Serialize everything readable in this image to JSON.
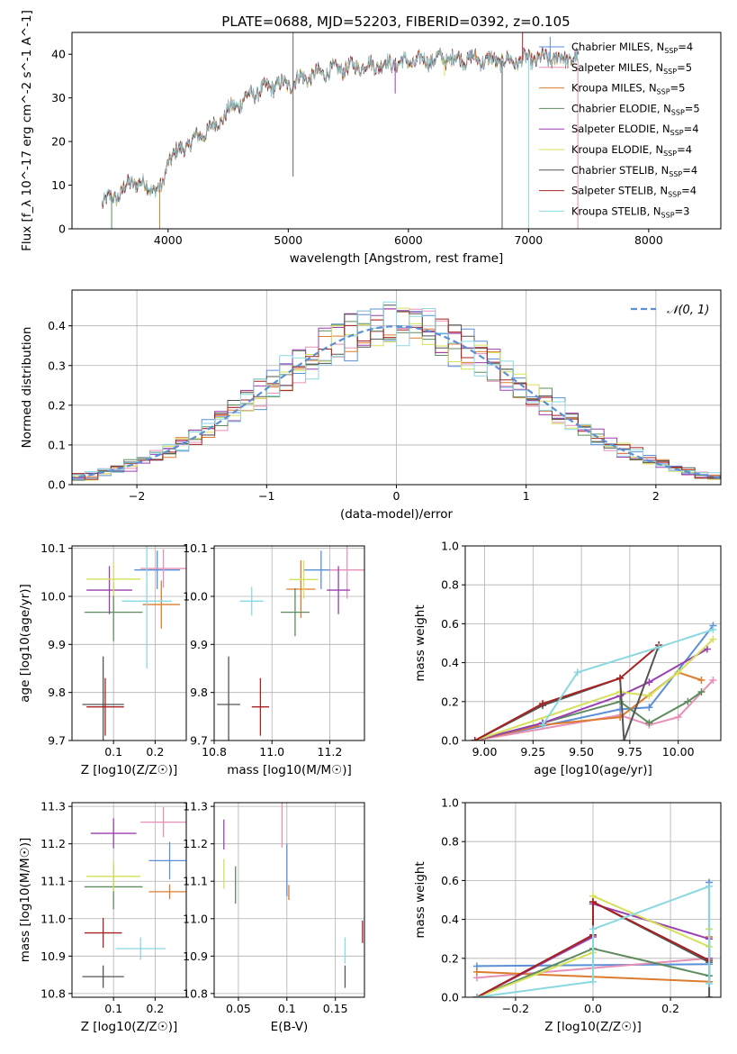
{
  "figure_title": "PLATE=0688, MJD=52203, FIBERID=0392, z=0.105",
  "colors": {
    "Chabrier MILES": "#5b8fd6",
    "Salpeter MILES": "#e88fb6",
    "Kroupa MILES": "#dd7c2f",
    "Chabrier ELODIE": "#5e8c5e",
    "Salpeter ELODIE": "#9b3fb0",
    "Kroupa ELODIE": "#d6e05a",
    "Chabrier STELIB": "#555555",
    "Salpeter STELIB": "#a82222",
    "Kroupa STELIB": "#8ad8e0",
    "normal_curve": "#5b8fd6"
  },
  "chart_data": [
    {
      "panel": "spectrum",
      "type": "line",
      "xlabel": "wavelength [Angstrom, rest frame]",
      "ylabel": "Flux [f_λ 10^-17 erg cm^-2 s^-1 A^-1]",
      "xlim": [
        3200,
        8600
      ],
      "ylim": [
        0,
        45
      ],
      "xticks": [
        4000,
        5000,
        6000,
        7000,
        8000
      ],
      "yticks": [
        0,
        10,
        20,
        30,
        40
      ],
      "grid": false,
      "legend_position": "right",
      "legend": [
        {
          "label": "Chabrier MILES, N_SSP=4",
          "main": "Chabrier MILES, N",
          "sub": "SSP",
          "post": "=4"
        },
        {
          "label": "Salpeter MILES, N_SSP=5",
          "main": "Salpeter MILES, N",
          "sub": "SSP",
          "post": "=5"
        },
        {
          "label": "Kroupa MILES, N_SSP=5",
          "main": "Kroupa MILES, N",
          "sub": "SSP",
          "post": "=5"
        },
        {
          "label": "Chabrier ELODIE, N_SSP=5",
          "main": "Chabrier ELODIE, N",
          "sub": "SSP",
          "post": "=5"
        },
        {
          "label": "Salpeter ELODIE, N_SSP=4",
          "main": "Salpeter ELODIE, N",
          "sub": "SSP",
          "post": "=4"
        },
        {
          "label": "Kroupa ELODIE, N_SSP=4",
          "main": "Kroupa ELODIE, N",
          "sub": "SSP",
          "post": "=4"
        },
        {
          "label": "Chabrier STELIB, N_SSP=4",
          "main": "Chabrier STELIB, N",
          "sub": "SSP",
          "post": "=4"
        },
        {
          "label": "Salpeter STELIB, N_SSP=4",
          "main": "Salpeter STELIB, N",
          "sub": "SSP",
          "post": "=4"
        },
        {
          "label": "Kroupa STELIB, N_SSP=3",
          "main": "Kroupa STELIB, N",
          "sub": "SSP",
          "post": "=3"
        }
      ],
      "continuum": [
        [
          3450,
          6
        ],
        [
          3600,
          8
        ],
        [
          3700,
          11
        ],
        [
          3800,
          10
        ],
        [
          3900,
          9
        ],
        [
          3950,
          9
        ],
        [
          4000,
          16
        ],
        [
          4100,
          18
        ],
        [
          4200,
          20
        ],
        [
          4300,
          22
        ],
        [
          4400,
          24
        ],
        [
          4500,
          27
        ],
        [
          4600,
          29
        ],
        [
          4700,
          31
        ],
        [
          4800,
          32
        ],
        [
          4900,
          33
        ],
        [
          5000,
          33
        ],
        [
          5100,
          34.5
        ],
        [
          5200,
          35
        ],
        [
          5300,
          36
        ],
        [
          5500,
          37
        ],
        [
          5700,
          37.5
        ],
        [
          5900,
          38
        ],
        [
          6100,
          38.5
        ],
        [
          6300,
          39
        ],
        [
          6500,
          39
        ],
        [
          6700,
          38.5
        ],
        [
          6900,
          38.5
        ],
        [
          7100,
          39
        ],
        [
          7300,
          39
        ],
        [
          7420,
          39
        ]
      ],
      "spikes": [
        {
          "x": 5040,
          "y": 45
        },
        {
          "x": 5040,
          "y": 12
        },
        {
          "x": 3930,
          "y": 0
        },
        {
          "x": 3530,
          "y": 0
        },
        {
          "x": 5890,
          "y": 31
        },
        {
          "x": 6300,
          "y": 35
        },
        {
          "x": 6780,
          "y": 0
        },
        {
          "x": 6950,
          "y": 45
        },
        {
          "x": 7000,
          "y": 0
        },
        {
          "x": 7180,
          "y": 44
        },
        {
          "x": 7410,
          "y": 0
        },
        {
          "x": 6560,
          "y": 41
        }
      ]
    },
    {
      "panel": "residuals",
      "type": "histogram",
      "xlabel": "(data-model)/error",
      "ylabel": "Normed distribution",
      "xlim": [
        -2.5,
        2.5
      ],
      "ylim": [
        0,
        0.49
      ],
      "xticks": [
        -2,
        -1,
        0,
        1,
        2
      ],
      "yticks": [
        0.0,
        0.1,
        0.2,
        0.3,
        0.4
      ],
      "grid": true,
      "legend_position": "top-right",
      "reference_curve": {
        "label": "𝒩(0, 1)",
        "mean": 0,
        "sigma": 1
      }
    },
    {
      "panel": "age_vs_Z",
      "type": "scatter",
      "xlabel": "Z [log10(Z/Z☉)]",
      "ylabel": "age  [log10(age/yr)]",
      "xlim": [
        0.0,
        0.275
      ],
      "ylim": [
        9.7,
        10.105
      ],
      "xticks": [
        0.1,
        0.2
      ],
      "yticks": [
        9.7,
        9.8,
        9.9,
        10.0,
        10.1
      ],
      "grid": true,
      "points": [
        {
          "model": "Chabrier MILES",
          "x": 0.205,
          "y": 10.055,
          "xerr": 0.055,
          "yerr": 0.04
        },
        {
          "model": "Salpeter MILES",
          "x": 0.22,
          "y": 10.058,
          "xerr": 0.055,
          "yerr": 0.04
        },
        {
          "model": "Kroupa MILES",
          "x": 0.215,
          "y": 9.983,
          "xerr": 0.045,
          "yerr": 0.05
        },
        {
          "model": "Chabrier ELODIE",
          "x": 0.1,
          "y": 9.967,
          "xerr": 0.07,
          "yerr": 0.06
        },
        {
          "model": "Salpeter ELODIE",
          "x": 0.09,
          "y": 10.013,
          "xerr": 0.055,
          "yerr": 0.05
        },
        {
          "model": "Kroupa ELODIE",
          "x": 0.1,
          "y": 10.036,
          "xerr": 0.065,
          "yerr": 0.035
        },
        {
          "model": "Chabrier STELIB",
          "x": 0.075,
          "y": 9.775,
          "xerr": 0.05,
          "yerr": 0.1
        },
        {
          "model": "Salpeter STELIB",
          "x": 0.08,
          "y": 9.77,
          "xerr": 0.045,
          "yerr": 0.06
        },
        {
          "model": "Kroupa STELIB",
          "x": 0.18,
          "y": 9.99,
          "xerr": 0.06,
          "yerr": 0.14
        }
      ]
    },
    {
      "panel": "age_vs_mass",
      "type": "scatter",
      "xlabel": "mass [log10(M/M☉)]",
      "ylabel": "",
      "xlim": [
        10.8,
        11.32
      ],
      "ylim": [
        9.7,
        10.105
      ],
      "xticks": [
        10.8,
        11.0,
        11.2
      ],
      "yticks": [
        9.7,
        9.8,
        9.9,
        10.0,
        10.1
      ],
      "grid": true,
      "points": [
        {
          "model": "Chabrier MILES",
          "x": 11.17,
          "y": 10.055,
          "xerr": 0.06,
          "yerr": 0.04
        },
        {
          "model": "Salpeter MILES",
          "x": 11.26,
          "y": 10.055,
          "xerr": 0.06,
          "yerr": 0.06
        },
        {
          "model": "Kroupa MILES",
          "x": 11.1,
          "y": 10.015,
          "xerr": 0.05,
          "yerr": 0.06
        },
        {
          "model": "Chabrier ELODIE",
          "x": 11.08,
          "y": 9.967,
          "xerr": 0.05,
          "yerr": 0.05
        },
        {
          "model": "Salpeter ELODIE",
          "x": 11.23,
          "y": 10.013,
          "xerr": 0.04,
          "yerr": 0.05
        },
        {
          "model": "Kroupa ELODIE",
          "x": 11.11,
          "y": 10.035,
          "xerr": 0.05,
          "yerr": 0.04
        },
        {
          "model": "Chabrier STELIB",
          "x": 10.85,
          "y": 9.775,
          "xerr": 0.04,
          "yerr": 0.1
        },
        {
          "model": "Salpeter STELIB",
          "x": 10.96,
          "y": 9.77,
          "xerr": 0.03,
          "yerr": 0.06
        },
        {
          "model": "Kroupa STELIB",
          "x": 10.93,
          "y": 9.99,
          "xerr": 0.04,
          "yerr": 0.03
        }
      ]
    },
    {
      "panel": "weight_vs_age",
      "type": "line",
      "xlabel": "age  [log10(age/yr)]",
      "ylabel": "mass weight",
      "xlim": [
        8.9,
        10.22
      ],
      "ylim": [
        0,
        1
      ],
      "xticks": [
        9.0,
        9.25,
        9.5,
        9.75,
        10.0
      ],
      "yticks": [
        0.0,
        0.2,
        0.4,
        0.6,
        0.8,
        1.0
      ],
      "grid": true,
      "series": [
        {
          "model": "Chabrier MILES",
          "x": [
            8.95,
            9.7,
            9.85,
            10.18
          ],
          "y": [
            0.0,
            0.16,
            0.17,
            0.59
          ]
        },
        {
          "model": "Salpeter MILES",
          "x": [
            8.95,
            9.7,
            9.85,
            10.0,
            10.18
          ],
          "y": [
            0.0,
            0.13,
            0.08,
            0.12,
            0.31
          ]
        },
        {
          "model": "Kroupa MILES",
          "x": [
            8.95,
            9.3,
            9.7,
            10.0,
            10.12
          ],
          "y": [
            0.0,
            0.08,
            0.12,
            0.35,
            0.31
          ]
        },
        {
          "model": "Chabrier ELODIE",
          "x": [
            8.95,
            9.3,
            9.7,
            9.85,
            10.05,
            10.12
          ],
          "y": [
            0.0,
            0.09,
            0.2,
            0.09,
            0.2,
            0.25
          ]
        },
        {
          "model": "Salpeter ELODIE",
          "x": [
            8.95,
            9.3,
            9.7,
            9.85,
            10.15
          ],
          "y": [
            0.0,
            0.09,
            0.23,
            0.3,
            0.47
          ]
        },
        {
          "model": "Kroupa ELODIE",
          "x": [
            8.95,
            9.7,
            9.85,
            10.0,
            10.18
          ],
          "y": [
            0.0,
            0.25,
            0.23,
            0.35,
            0.52
          ]
        },
        {
          "model": "Chabrier STELIB",
          "x": [
            8.95,
            9.3,
            9.7,
            9.72,
            9.9
          ],
          "y": [
            0.0,
            0.18,
            0.32,
            0.0,
            0.49
          ]
        },
        {
          "model": "Salpeter STELIB",
          "x": [
            8.95,
            9.3,
            9.7,
            9.9
          ],
          "y": [
            0.0,
            0.19,
            0.32,
            0.49
          ]
        },
        {
          "model": "Kroupa STELIB",
          "x": [
            9.3,
            9.48,
            9.9,
            10.18
          ],
          "y": [
            0.08,
            0.35,
            0.48,
            0.57
          ]
        }
      ]
    },
    {
      "panel": "mass_vs_Z",
      "type": "scatter",
      "xlabel": "Z [log10(Z/Z☉)]",
      "ylabel": "mass [log10(M/M☉)]",
      "xlim": [
        0.0,
        0.275
      ],
      "ylim": [
        10.79,
        11.31
      ],
      "xticks": [
        0.1,
        0.2
      ],
      "yticks": [
        10.8,
        10.9,
        11.0,
        11.1,
        11.2,
        11.3
      ],
      "grid": true,
      "points": [
        {
          "model": "Chabrier MILES",
          "x": 0.235,
          "y": 11.155,
          "xerr": 0.05,
          "yerr": 0.05
        },
        {
          "model": "Salpeter MILES",
          "x": 0.22,
          "y": 11.258,
          "xerr": 0.055,
          "yerr": 0.04
        },
        {
          "model": "Kroupa MILES",
          "x": 0.235,
          "y": 11.072,
          "xerr": 0.05,
          "yerr": 0.02
        },
        {
          "model": "Chabrier ELODIE",
          "x": 0.1,
          "y": 11.085,
          "xerr": 0.07,
          "yerr": 0.06
        },
        {
          "model": "Salpeter ELODIE",
          "x": 0.1,
          "y": 11.228,
          "xerr": 0.055,
          "yerr": 0.04
        },
        {
          "model": "Kroupa ELODIE",
          "x": 0.1,
          "y": 11.113,
          "xerr": 0.065,
          "yerr": 0.04
        },
        {
          "model": "Chabrier STELIB",
          "x": 0.075,
          "y": 10.845,
          "xerr": 0.05,
          "yerr": 0.03
        },
        {
          "model": "Salpeter STELIB",
          "x": 0.075,
          "y": 10.962,
          "xerr": 0.045,
          "yerr": 0.04
        },
        {
          "model": "Kroupa STELIB",
          "x": 0.165,
          "y": 10.92,
          "xerr": 0.06,
          "yerr": 0.03
        }
      ]
    },
    {
      "panel": "mass_vs_EBV",
      "type": "scatter",
      "xlabel": "E(B-V)",
      "ylabel": "",
      "xlim": [
        0.025,
        0.18
      ],
      "ylim": [
        10.79,
        11.31
      ],
      "xticks": [
        0.05,
        0.1,
        0.15
      ],
      "yticks": [
        10.8,
        10.9,
        11.0,
        11.1,
        11.2,
        11.3
      ],
      "grid": true,
      "points": [
        {
          "model": "Chabrier MILES",
          "x": 0.1,
          "y": 11.13,
          "xerr": 0,
          "yerr": 0.07
        },
        {
          "model": "Salpeter MILES",
          "x": 0.095,
          "y": 11.255,
          "xerr": 0,
          "yerr": 0.065
        },
        {
          "model": "Kroupa MILES",
          "x": 0.102,
          "y": 11.07,
          "xerr": 0,
          "yerr": 0.02
        },
        {
          "model": "Chabrier ELODIE",
          "x": 0.047,
          "y": 11.09,
          "xerr": 0,
          "yerr": 0.05
        },
        {
          "model": "Salpeter ELODIE",
          "x": 0.035,
          "y": 11.225,
          "xerr": 0,
          "yerr": 0.04
        },
        {
          "model": "Kroupa ELODIE",
          "x": 0.035,
          "y": 11.12,
          "xerr": 0,
          "yerr": 0.04
        },
        {
          "model": "Chabrier STELIB",
          "x": 0.16,
          "y": 10.845,
          "xerr": 0,
          "yerr": 0.03
        },
        {
          "model": "Salpeter STELIB",
          "x": 0.178,
          "y": 10.965,
          "xerr": 0,
          "yerr": 0.03
        },
        {
          "model": "Kroupa STELIB",
          "x": 0.16,
          "y": 10.915,
          "xerr": 0,
          "yerr": 0.035
        }
      ]
    },
    {
      "panel": "weight_vs_Z",
      "type": "line",
      "xlabel": "Z [log10(Z/Z☉)]",
      "ylabel": "mass weight",
      "xlim": [
        -0.33,
        0.33
      ],
      "ylim": [
        0,
        1
      ],
      "xticks": [
        -0.2,
        0.0,
        0.2
      ],
      "yticks": [
        0.0,
        0.2,
        0.4,
        0.6,
        0.8,
        1.0
      ],
      "grid": true,
      "series": [
        {
          "model": "Chabrier MILES",
          "x": [
            -0.3,
            0.3,
            0.3,
            0.3
          ],
          "y": [
            0.16,
            0.17,
            0.59,
            0.08
          ]
        },
        {
          "model": "Salpeter MILES",
          "x": [
            -0.3,
            0.3,
            0.3
          ],
          "y": [
            0.1,
            0.2,
            0.31
          ]
        },
        {
          "model": "Kroupa MILES",
          "x": [
            -0.3,
            0.3,
            0.3,
            0.3
          ],
          "y": [
            0.13,
            0.08,
            0.35,
            0.31
          ]
        },
        {
          "model": "Chabrier ELODIE",
          "x": [
            -0.3,
            0.0,
            0.3,
            0.3
          ],
          "y": [
            0.0,
            0.25,
            0.11,
            0.2
          ]
        },
        {
          "model": "Salpeter ELODIE",
          "x": [
            -0.3,
            0.0,
            0.0,
            0.3,
            0.3
          ],
          "y": [
            0.0,
            0.31,
            0.48,
            0.3,
            0.2
          ]
        },
        {
          "model": "Kroupa ELODIE",
          "x": [
            -0.3,
            0.0,
            0.0,
            0.3,
            0.3
          ],
          "y": [
            0.0,
            0.23,
            0.52,
            0.26,
            0.35
          ]
        },
        {
          "model": "Chabrier STELIB",
          "x": [
            -0.3,
            0.0,
            0.0,
            0.3,
            0.3
          ],
          "y": [
            0.0,
            0.32,
            0.49,
            0.18,
            0.0
          ]
        },
        {
          "model": "Salpeter STELIB",
          "x": [
            -0.3,
            0.0,
            0.0,
            0.3
          ],
          "y": [
            0.0,
            0.32,
            0.49,
            0.19
          ]
        },
        {
          "model": "Kroupa STELIB",
          "x": [
            -0.3,
            0.0,
            0.0,
            0.3,
            0.3
          ],
          "y": [
            0.0,
            0.08,
            0.35,
            0.57,
            0.07
          ]
        }
      ]
    }
  ]
}
